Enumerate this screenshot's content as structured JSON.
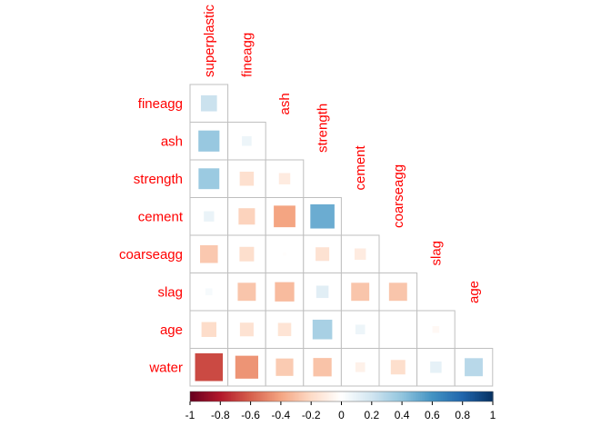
{
  "chart_data": {
    "type": "heatmap",
    "title": "",
    "variables": [
      "superplastic",
      "fineagg",
      "ash",
      "strength",
      "cement",
      "coarseagg",
      "slag",
      "age",
      "water"
    ],
    "row_labels": [
      "fineagg",
      "ash",
      "strength",
      "cement",
      "coarseagg",
      "slag",
      "age",
      "water"
    ],
    "column_labels": [
      "superplastic",
      "fineagg",
      "ash",
      "strength",
      "cement",
      "coarseagg",
      "slag",
      "age"
    ],
    "matrix_shape": "lower-triangle",
    "cells": [
      {
        "row": "fineagg",
        "col": "superplastic",
        "r": 0.22
      },
      {
        "row": "ash",
        "col": "superplastic",
        "r": 0.38
      },
      {
        "row": "ash",
        "col": "fineagg",
        "r": 0.08
      },
      {
        "row": "strength",
        "col": "superplastic",
        "r": 0.37
      },
      {
        "row": "strength",
        "col": "fineagg",
        "r": -0.17
      },
      {
        "row": "strength",
        "col": "ash",
        "r": -0.11
      },
      {
        "row": "cement",
        "col": "superplastic",
        "r": 0.09
      },
      {
        "row": "cement",
        "col": "fineagg",
        "r": -0.23
      },
      {
        "row": "cement",
        "col": "ash",
        "r": -0.4
      },
      {
        "row": "cement",
        "col": "strength",
        "r": 0.5
      },
      {
        "row": "coarseagg",
        "col": "superplastic",
        "r": -0.27
      },
      {
        "row": "coarseagg",
        "col": "fineagg",
        "r": -0.18
      },
      {
        "row": "coarseagg",
        "col": "ash",
        "r": -0.01
      },
      {
        "row": "coarseagg",
        "col": "strength",
        "r": -0.16
      },
      {
        "row": "coarseagg",
        "col": "cement",
        "r": -0.11
      },
      {
        "row": "slag",
        "col": "superplastic",
        "r": 0.04
      },
      {
        "row": "slag",
        "col": "fineagg",
        "r": -0.28
      },
      {
        "row": "slag",
        "col": "ash",
        "r": -0.32
      },
      {
        "row": "slag",
        "col": "strength",
        "r": 0.13
      },
      {
        "row": "slag",
        "col": "cement",
        "r": -0.28
      },
      {
        "row": "slag",
        "col": "coarseagg",
        "r": -0.28
      },
      {
        "row": "age",
        "col": "superplastic",
        "r": -0.19
      },
      {
        "row": "age",
        "col": "fineagg",
        "r": -0.16
      },
      {
        "row": "age",
        "col": "ash",
        "r": -0.15
      },
      {
        "row": "age",
        "col": "strength",
        "r": 0.33
      },
      {
        "row": "age",
        "col": "cement",
        "r": 0.08
      },
      {
        "row": "age",
        "col": "coarseagg",
        "r": 0.0
      },
      {
        "row": "age",
        "col": "slag",
        "r": -0.04
      },
      {
        "row": "water",
        "col": "superplastic",
        "r": -0.66
      },
      {
        "row": "water",
        "col": "fineagg",
        "r": -0.45
      },
      {
        "row": "water",
        "col": "ash",
        "r": -0.26
      },
      {
        "row": "water",
        "col": "strength",
        "r": -0.29
      },
      {
        "row": "water",
        "col": "cement",
        "r": -0.08
      },
      {
        "row": "water",
        "col": "coarseagg",
        "r": -0.18
      },
      {
        "row": "water",
        "col": "slag",
        "r": 0.11
      },
      {
        "row": "water",
        "col": "age",
        "r": 0.28
      }
    ],
    "colorbar": {
      "range": [
        -1,
        1
      ],
      "ticks": [
        "-1",
        "-0.8",
        "-0.6",
        "-0.4",
        "-0.2",
        "0",
        "0.2",
        "0.4",
        "0.6",
        "0.8",
        "1"
      ]
    },
    "colors": {
      "label": "#ff0000",
      "grid": "#bfbfbf",
      "scale": [
        "#67001f",
        "#b2182b",
        "#d6604d",
        "#f4a582",
        "#fddbc7",
        "#ffffff",
        "#d1e5f0",
        "#92c5de",
        "#4393c3",
        "#2166ac",
        "#053061"
      ]
    }
  }
}
